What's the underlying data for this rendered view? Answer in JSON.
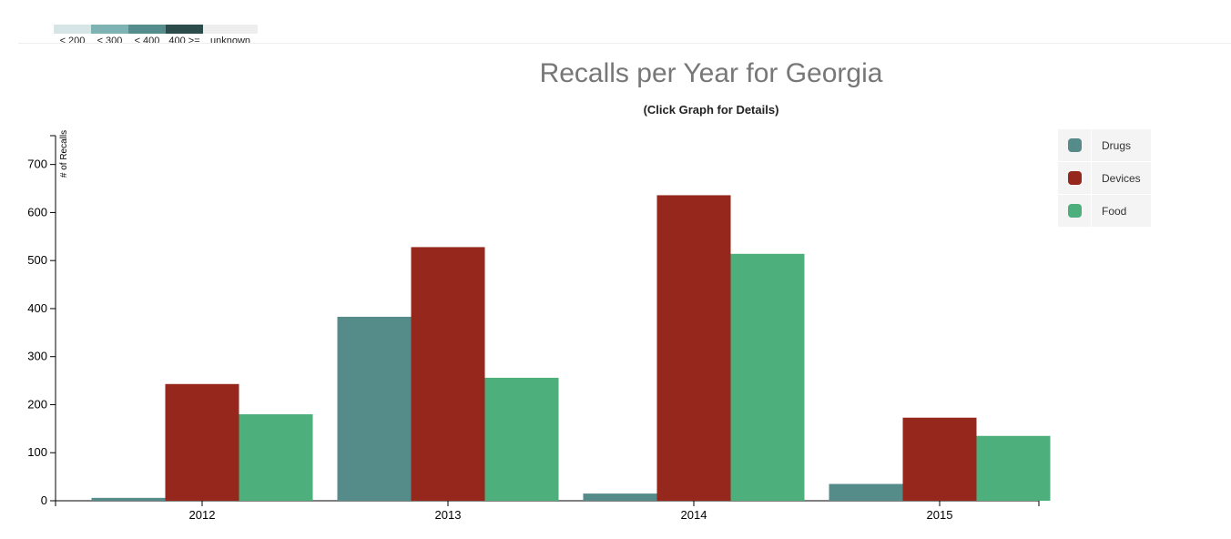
{
  "scale_legend": {
    "items": [
      {
        "label": "< 200",
        "color": "#d6e6e6"
      },
      {
        "label": "< 300",
        "color": "#7fb3b3"
      },
      {
        "label": "< 400",
        "color": "#558c8c"
      },
      {
        "label": "400 >=",
        "color": "#2c4b4b"
      },
      {
        "label": "unknown",
        "color": "#eeeeee"
      }
    ]
  },
  "chart_data": {
    "type": "bar",
    "title": "Recalls per Year for Georgia",
    "subtitle": "(Click Graph for Details)",
    "ylabel": "# of Recalls",
    "xlabel": "",
    "categories": [
      "2012",
      "2013",
      "2014",
      "2015"
    ],
    "series": [
      {
        "name": "Drugs",
        "color": "#558c8a",
        "values": [
          6,
          383,
          15,
          35
        ]
      },
      {
        "name": "Devices",
        "color": "#95271d",
        "values": [
          243,
          528,
          636,
          173
        ]
      },
      {
        "name": "Food",
        "color": "#4daf7c",
        "values": [
          180,
          256,
          514,
          135
        ]
      }
    ],
    "ylim": [
      0,
      760
    ],
    "yticks": [
      0,
      100,
      200,
      300,
      400,
      500,
      600,
      700
    ],
    "legend_position": "top-right",
    "grid": false
  }
}
